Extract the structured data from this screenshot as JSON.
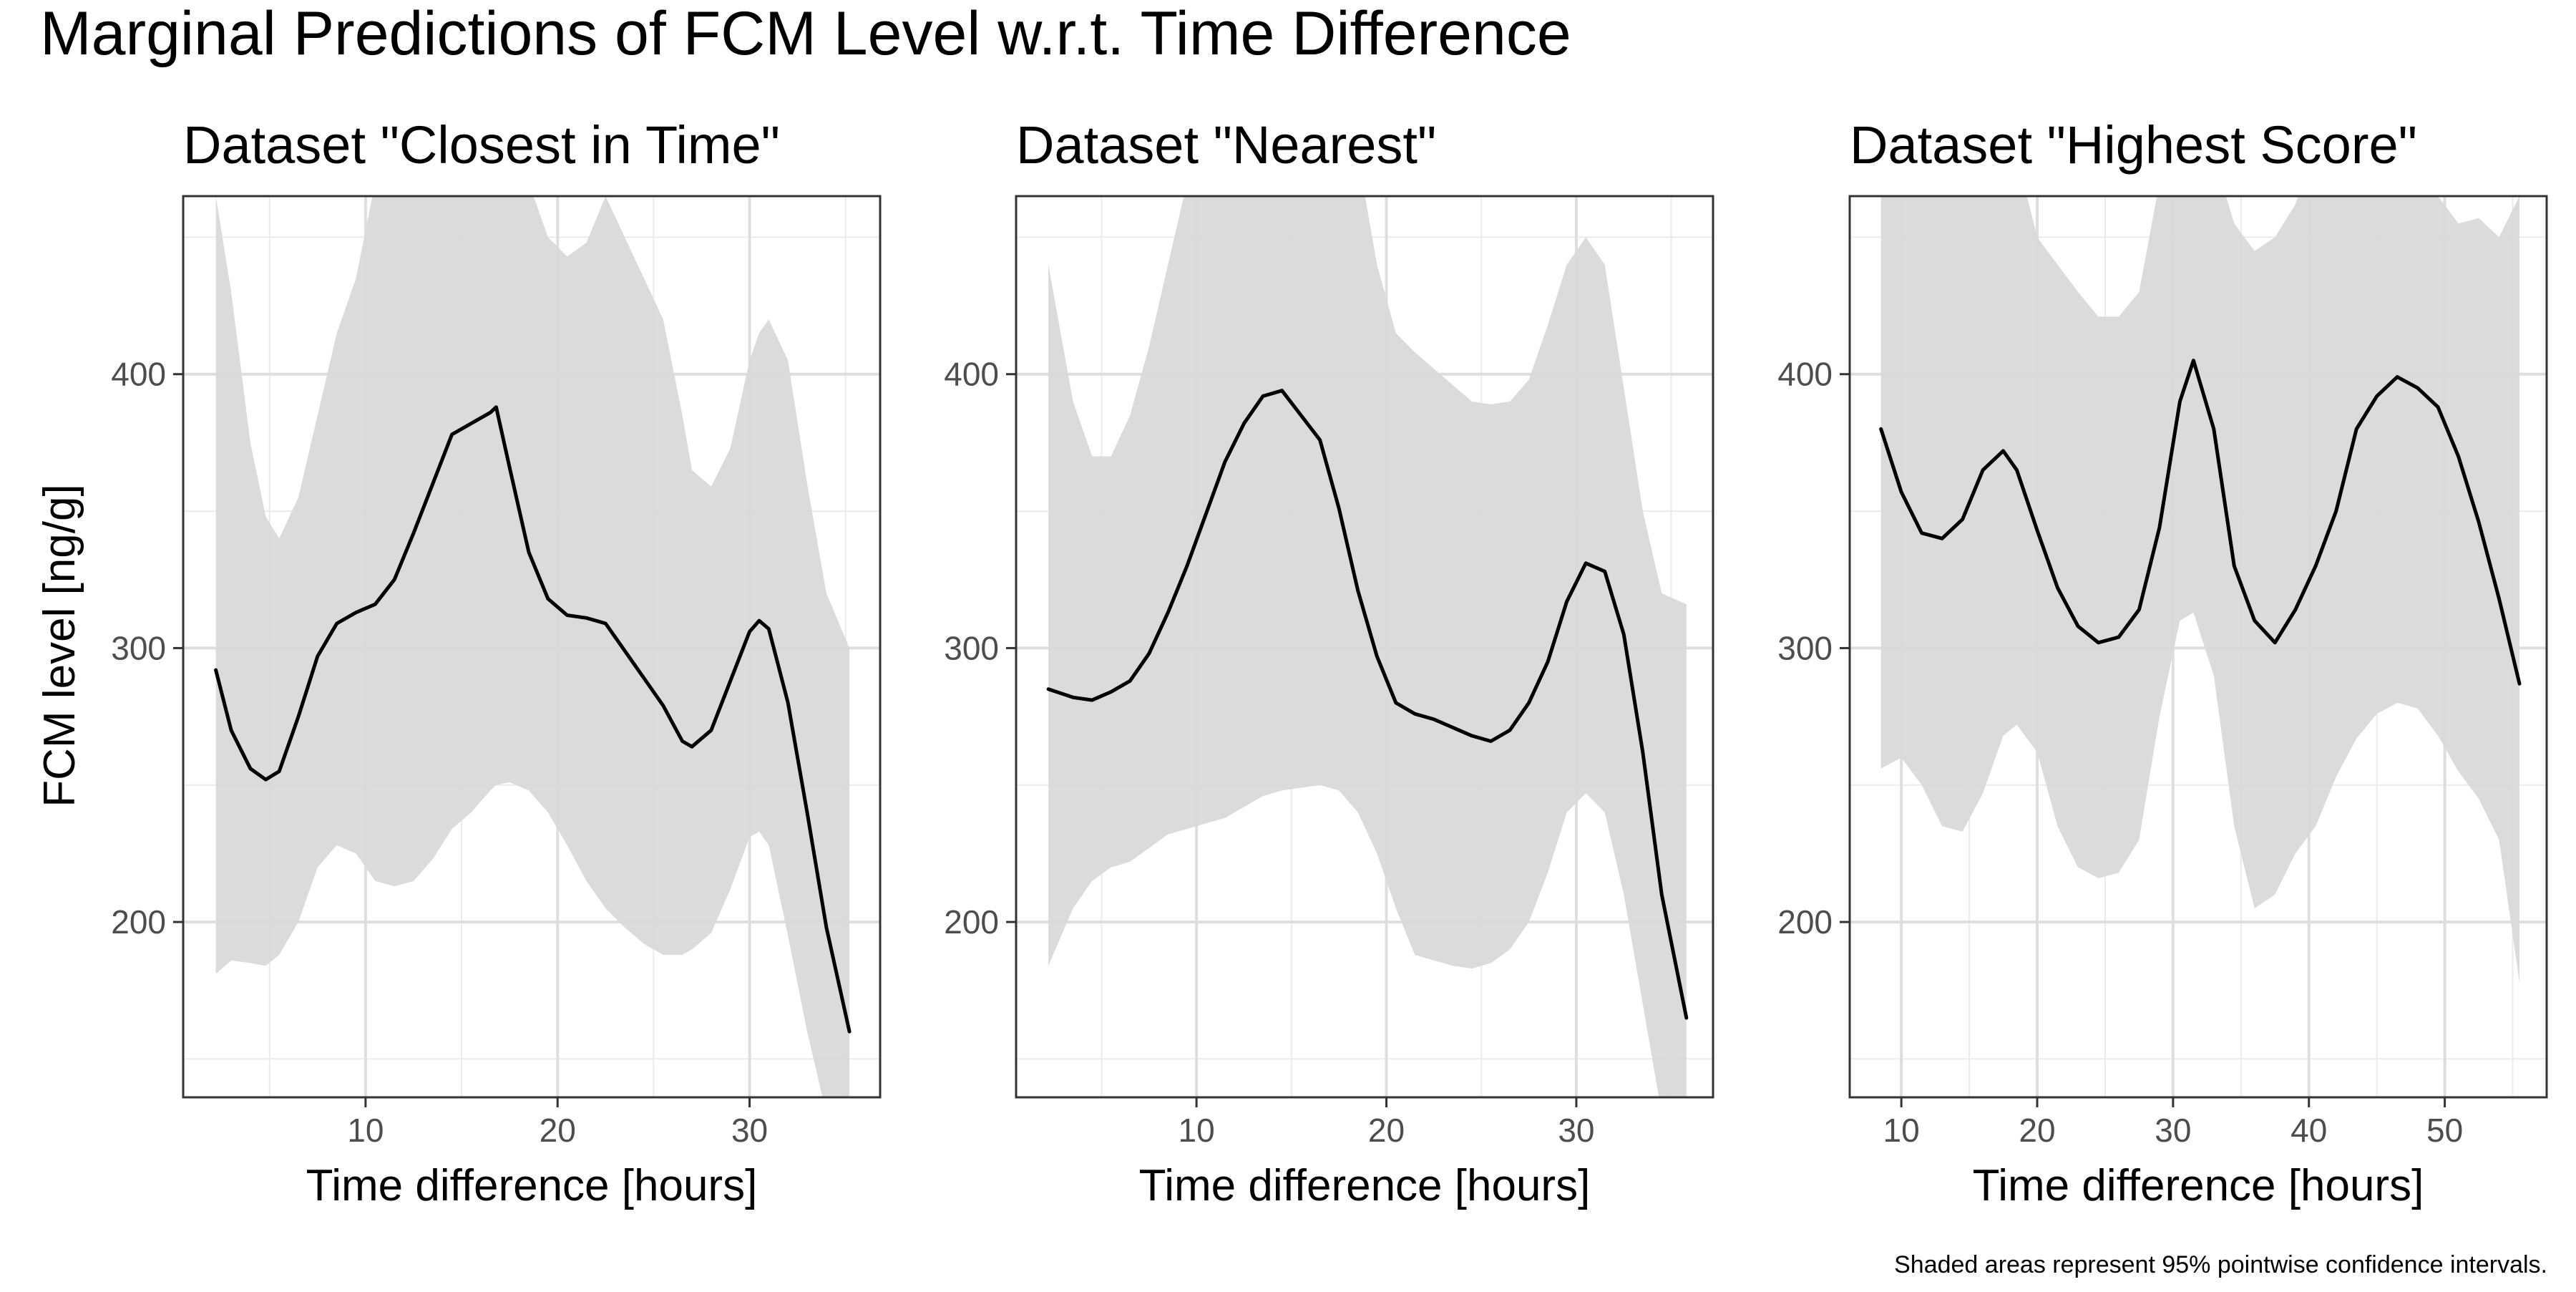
{
  "figure": {
    "title": "Marginal Predictions of FCM Level w.r.t. Time Difference",
    "ylabel": "FCM level [ng/g]",
    "caption": "Shaded areas represent 95% pointwise confidence intervals."
  },
  "chart_data": [
    {
      "type": "line",
      "title": "Dataset \"Closest in Time\"",
      "xlabel": "Time difference [hours]",
      "ylabel": "FCM level [ng/g]",
      "xlim": [
        0.5,
        36.8
      ],
      "ylim": [
        136,
        465
      ],
      "xticks": [
        10,
        20,
        30
      ],
      "yticks": [
        200,
        300,
        400
      ],
      "grid": true,
      "band_color": "#d9d9d9",
      "line_color": "#000000",
      "series": [
        {
          "x": [
            2.2,
            3,
            4,
            4.8,
            5.5,
            6.5,
            7.5,
            8.5,
            9.5,
            10.5,
            11.5,
            12.5,
            13.5,
            14.5,
            15.5,
            16.5,
            16.8,
            17.5,
            18.5,
            19.5,
            20.5,
            21.5,
            22.5,
            23.5,
            24.5,
            25.5,
            26.5,
            27,
            28,
            29,
            30,
            30.5,
            31,
            32,
            33,
            34,
            35.2
          ],
          "y": [
            292,
            270,
            256,
            252,
            255,
            275,
            297,
            309,
            313,
            316,
            325,
            342,
            360,
            378,
            382,
            386,
            388,
            366,
            335,
            318,
            312,
            311,
            309,
            299,
            289,
            279,
            266,
            264,
            270,
            288,
            306,
            310,
            307,
            280,
            240,
            198,
            160
          ],
          "upper": [
            465,
            430,
            375,
            348,
            340,
            355,
            385,
            415,
            435,
            470,
            500,
            500,
            500,
            500,
            500,
            500,
            500,
            500,
            470,
            450,
            443,
            448,
            465,
            450,
            435,
            420,
            385,
            365,
            359,
            373,
            405,
            415,
            420,
            405,
            360,
            320,
            300
          ],
          "lower": [
            181,
            186,
            185,
            184,
            188,
            200,
            220,
            228,
            225,
            215,
            213,
            215,
            223,
            234,
            240,
            248,
            250,
            251,
            248,
            240,
            228,
            215,
            205,
            198,
            192,
            188,
            188,
            190,
            196,
            212,
            231,
            233,
            228,
            195,
            160,
            130,
            120
          ]
        }
      ]
    },
    {
      "type": "line",
      "title": "Dataset \"Nearest\"",
      "xlabel": "Time difference [hours]",
      "ylabel": "",
      "xlim": [
        0.5,
        37.2
      ],
      "ylim": [
        136,
        465
      ],
      "xticks": [
        10,
        20,
        30
      ],
      "yticks": [
        200,
        300,
        400
      ],
      "grid": true,
      "band_color": "#d9d9d9",
      "line_color": "#000000",
      "series": [
        {
          "x": [
            2.2,
            3.5,
            4.5,
            5.5,
            6.5,
            7.5,
            8.5,
            9.5,
            10.5,
            11.5,
            12.5,
            13.5,
            14.5,
            15.5,
            16.5,
            17.5,
            18.5,
            19.5,
            20.5,
            21.5,
            22.5,
            23.5,
            24.5,
            25.5,
            26.5,
            27.5,
            28.5,
            29.5,
            30.5,
            31.5,
            32.5,
            33.5,
            34.5,
            35.8
          ],
          "y": [
            285,
            282,
            281,
            284,
            288,
            298,
            313,
            330,
            349,
            368,
            382,
            392,
            394,
            385,
            376,
            351,
            321,
            297,
            280,
            276,
            274,
            271,
            268,
            266,
            270,
            280,
            295,
            317,
            331,
            328,
            305,
            262,
            210,
            165
          ],
          "upper": [
            440,
            390,
            370,
            370,
            385,
            410,
            440,
            470,
            500,
            500,
            500,
            500,
            500,
            500,
            500,
            500,
            480,
            440,
            415,
            408,
            402,
            396,
            390,
            389,
            390,
            398,
            418,
            440,
            450,
            440,
            395,
            350,
            320,
            316
          ],
          "lower": [
            184,
            205,
            215,
            220,
            222,
            227,
            232,
            234,
            236,
            238,
            242,
            246,
            248,
            249,
            250,
            248,
            240,
            225,
            205,
            188,
            186,
            184,
            183,
            185,
            190,
            200,
            218,
            240,
            247,
            240,
            210,
            170,
            130,
            120
          ]
        }
      ]
    },
    {
      "type": "line",
      "title": "Dataset \"Highest Score\"",
      "xlabel": "Time difference [hours]",
      "ylabel": "",
      "xlim": [
        6.2,
        57.5
      ],
      "ylim": [
        136,
        465
      ],
      "xticks": [
        10,
        20,
        30,
        40,
        50
      ],
      "yticks": [
        200,
        300,
        400
      ],
      "grid": true,
      "band_color": "#d9d9d9",
      "line_color": "#000000",
      "series": [
        {
          "x": [
            8.5,
            10,
            11.5,
            13,
            14.5,
            16,
            17.5,
            18.5,
            20,
            21.5,
            23,
            24.5,
            26,
            27.5,
            29,
            30.5,
            31.5,
            33,
            34.5,
            36,
            37.5,
            39,
            40.5,
            42,
            43.5,
            45,
            46.5,
            48,
            49.5,
            51,
            52.5,
            54,
            55.5
          ],
          "y": [
            380,
            357,
            342,
            340,
            347,
            365,
            372,
            365,
            343,
            322,
            308,
            302,
            304,
            314,
            344,
            390,
            405,
            380,
            330,
            310,
            302,
            314,
            330,
            350,
            380,
            392,
            399,
            395,
            388,
            370,
            346,
            318,
            287
          ],
          "upper": [
            480,
            500,
            500,
            500,
            500,
            500,
            500,
            480,
            450,
            440,
            430,
            421,
            421,
            430,
            470,
            500,
            500,
            480,
            455,
            445,
            450,
            462,
            485,
            500,
            500,
            500,
            500,
            480,
            465,
            455,
            457,
            450,
            465
          ],
          "lower": [
            256,
            260,
            250,
            235,
            233,
            247,
            268,
            272,
            262,
            235,
            220,
            216,
            218,
            230,
            275,
            310,
            313,
            290,
            235,
            205,
            210,
            225,
            235,
            253,
            267,
            276,
            280,
            278,
            268,
            255,
            245,
            230,
            178
          ]
        }
      ]
    }
  ]
}
